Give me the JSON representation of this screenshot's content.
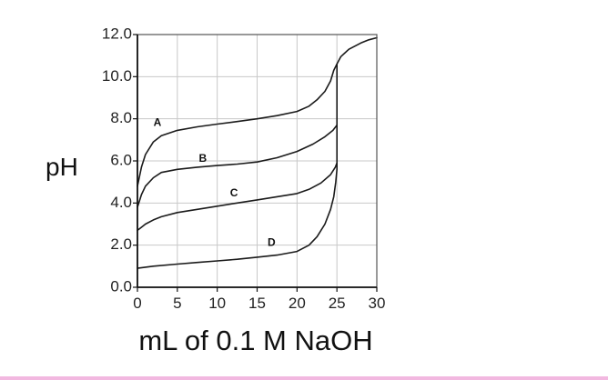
{
  "chart_data": {
    "type": "line",
    "title": "",
    "xlabel": "mL of 0.1 M NaOH",
    "ylabel": "pH",
    "xlim": [
      0,
      30
    ],
    "ylim": [
      0,
      12
    ],
    "x_ticks": [
      0,
      5,
      10,
      15,
      20,
      25,
      30
    ],
    "x_tick_labels": [
      "0",
      "5",
      "10",
      "15",
      "20",
      "25",
      "30"
    ],
    "y_ticks": [
      0,
      2,
      4,
      6,
      8,
      10,
      12
    ],
    "y_tick_labels": [
      "0.0",
      "2.0",
      "4.0",
      "6.0",
      "8.0",
      "10.0",
      "12.0"
    ],
    "grid": true,
    "legend": "none",
    "line_color": "#1a1a1a",
    "series": [
      {
        "name": "A",
        "label_at": [
          2.5,
          7.8
        ],
        "points": [
          [
            0,
            4.8
          ],
          [
            0.5,
            5.7
          ],
          [
            1,
            6.3
          ],
          [
            2,
            6.9
          ],
          [
            3,
            7.2
          ],
          [
            5,
            7.45
          ],
          [
            7.5,
            7.62
          ],
          [
            10,
            7.75
          ],
          [
            12.5,
            7.87
          ],
          [
            15,
            8.0
          ],
          [
            17.5,
            8.15
          ],
          [
            20,
            8.35
          ],
          [
            21.5,
            8.6
          ],
          [
            22.5,
            8.9
          ],
          [
            23.5,
            9.3
          ],
          [
            24.2,
            9.8
          ],
          [
            24.6,
            10.3
          ],
          [
            25,
            10.6
          ],
          [
            25.5,
            10.95
          ],
          [
            26.5,
            11.3
          ],
          [
            28,
            11.6
          ],
          [
            29,
            11.75
          ],
          [
            30,
            11.85
          ]
        ]
      },
      {
        "name": "B",
        "label_at": [
          8.2,
          6.1
        ],
        "points": [
          [
            0,
            3.8
          ],
          [
            0.5,
            4.4
          ],
          [
            1,
            4.8
          ],
          [
            2,
            5.2
          ],
          [
            3,
            5.45
          ],
          [
            5,
            5.6
          ],
          [
            7.5,
            5.7
          ],
          [
            10,
            5.78
          ],
          [
            12.5,
            5.85
          ],
          [
            15,
            5.95
          ],
          [
            17.5,
            6.15
          ],
          [
            20,
            6.45
          ],
          [
            22,
            6.8
          ],
          [
            23.5,
            7.15
          ],
          [
            24.5,
            7.45
          ],
          [
            25,
            7.7
          ]
        ]
      },
      {
        "name": "C",
        "label_at": [
          12.1,
          4.45
        ],
        "points": [
          [
            0,
            2.7
          ],
          [
            0.5,
            2.85
          ],
          [
            1,
            3.0
          ],
          [
            2,
            3.2
          ],
          [
            3,
            3.35
          ],
          [
            5,
            3.55
          ],
          [
            7.5,
            3.7
          ],
          [
            10,
            3.85
          ],
          [
            12.5,
            4.0
          ],
          [
            15,
            4.15
          ],
          [
            17.5,
            4.3
          ],
          [
            20,
            4.45
          ],
          [
            21.5,
            4.65
          ],
          [
            23,
            4.95
          ],
          [
            24.2,
            5.35
          ],
          [
            24.8,
            5.7
          ],
          [
            25,
            5.9
          ]
        ]
      },
      {
        "name": "D",
        "label_at": [
          16.8,
          2.1
        ],
        "points": [
          [
            0,
            0.9
          ],
          [
            2,
            1.0
          ],
          [
            5,
            1.1
          ],
          [
            7.5,
            1.18
          ],
          [
            10,
            1.25
          ],
          [
            12.5,
            1.33
          ],
          [
            15,
            1.43
          ],
          [
            17.5,
            1.53
          ],
          [
            20,
            1.7
          ],
          [
            21.5,
            2.0
          ],
          [
            22.5,
            2.4
          ],
          [
            23.5,
            3.0
          ],
          [
            24.2,
            3.7
          ],
          [
            24.6,
            4.3
          ],
          [
            24.85,
            5.0
          ],
          [
            25,
            5.6
          ]
        ]
      },
      {
        "name": "",
        "points": [
          [
            25,
            5.6
          ],
          [
            25,
            10.6
          ]
        ]
      }
    ]
  }
}
